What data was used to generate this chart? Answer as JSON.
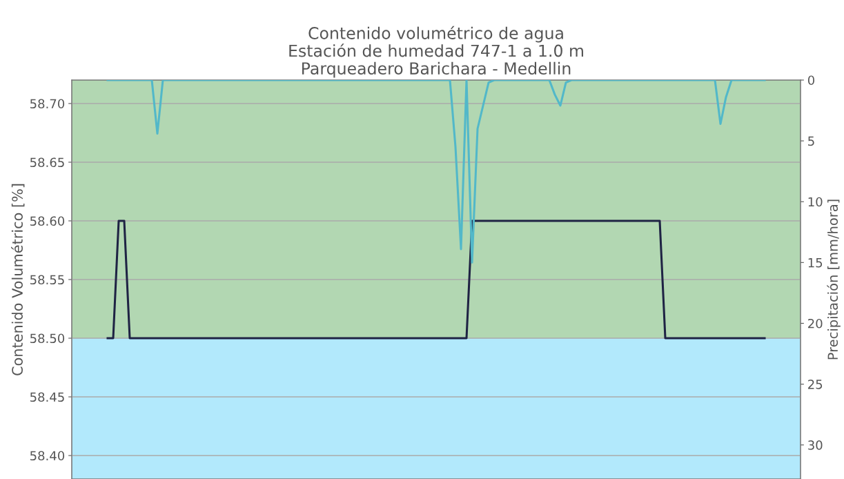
{
  "chart_data": {
    "type": "line",
    "title": "Contenido volumétrico de agua\nEstación de humedad 747-1 a 1.0 m\nParqueadero Barichara - Medellin",
    "ylabel": "Contenido Volumétrico [%]",
    "y2label": "Precipitación [mm/hora]",
    "categories": [
      null,
      null,
      null,
      null,
      null,
      null,
      null,
      null,
      null,
      null,
      null,
      null,
      null,
      null,
      null,
      null,
      null,
      null,
      null,
      null,
      null,
      null,
      null,
      null,
      null,
      null,
      null,
      null,
      null,
      null,
      null,
      null,
      null,
      null,
      null,
      null,
      null,
      null,
      null,
      null,
      null,
      null,
      null,
      null,
      null,
      null,
      null,
      null,
      null,
      null,
      null,
      null,
      null,
      null,
      null,
      null,
      null,
      null,
      null,
      null,
      null,
      null,
      null,
      null,
      null,
      null,
      null,
      null,
      null,
      null,
      null,
      null,
      null,
      null,
      null,
      null,
      null,
      null,
      null,
      null,
      null,
      null,
      null,
      null,
      null,
      null,
      null,
      null,
      null,
      null,
      null,
      null,
      null,
      null,
      null,
      null,
      null,
      null,
      null,
      null,
      null,
      null,
      null,
      null,
      null,
      null,
      null,
      null,
      null,
      null,
      null,
      null,
      null,
      null,
      null,
      null,
      null,
      null,
      null,
      null,
      null,
      null,
      null,
      null,
      null,
      null,
      null,
      null,
      null,
      null,
      null,
      null
    ],
    "ylim": [
      58.38,
      58.72
    ],
    "yticks": [
      {
        "value": 58.4,
        "label": "58.40"
      },
      {
        "value": 58.45,
        "label": "58.45"
      },
      {
        "value": 58.5,
        "label": "58.50"
      },
      {
        "value": 58.55,
        "label": "58.55"
      },
      {
        "value": 58.6,
        "label": "58.60"
      },
      {
        "value": 58.65,
        "label": "58.65"
      },
      {
        "value": 58.7,
        "label": "58.70"
      }
    ],
    "y2lim": [
      32.8,
      0
    ],
    "y2ticks": [
      0,
      5,
      10,
      15,
      20,
      25,
      30
    ],
    "grid": "y",
    "marker": "none",
    "line_style": "solid",
    "bands": [
      {
        "axis": "y",
        "from": 58.5,
        "to": 58.72,
        "color": "#b2d7b2"
      },
      {
        "axis": "y",
        "from": 58.38,
        "to": 58.5,
        "color": "#b2e9fc"
      }
    ],
    "series": [
      {
        "color": "#1f2344",
        "axis": "y",
        "values": [
          null,
          null,
          null,
          null,
          null,
          null,
          58.5,
          58.5,
          58.6,
          58.6,
          58.5,
          58.5,
          58.5,
          58.5,
          58.5,
          58.5,
          58.5,
          58.5,
          58.5,
          58.5,
          58.5,
          58.5,
          58.5,
          58.5,
          58.5,
          58.5,
          58.5,
          58.5,
          58.5,
          58.5,
          58.5,
          58.5,
          58.5,
          58.5,
          58.5,
          58.5,
          58.5,
          58.5,
          58.5,
          58.5,
          58.5,
          58.5,
          58.5,
          58.5,
          58.5,
          58.5,
          58.5,
          58.5,
          58.5,
          58.5,
          58.5,
          58.5,
          58.5,
          58.5,
          58.5,
          58.5,
          58.5,
          58.5,
          58.5,
          58.5,
          58.5,
          58.5,
          58.5,
          58.5,
          58.5,
          58.5,
          58.5,
          58.5,
          58.5,
          58.5,
          58.5,
          58.5,
          58.6,
          58.6,
          58.6,
          58.6,
          58.6,
          58.6,
          58.6,
          58.6,
          58.6,
          58.6,
          58.6,
          58.6,
          58.6,
          58.6,
          58.6,
          58.6,
          58.6,
          58.6,
          58.6,
          58.6,
          58.6,
          58.6,
          58.6,
          58.6,
          58.6,
          58.6,
          58.6,
          58.6,
          58.6,
          58.6,
          58.6,
          58.6,
          58.6,
          58.6,
          58.6,
          58.5,
          58.5,
          58.5,
          58.5,
          58.5,
          58.5,
          58.5,
          58.5,
          58.5,
          58.5,
          58.5,
          58.5,
          58.5,
          58.5,
          58.5,
          58.5,
          58.5,
          58.5,
          58.5,
          null,
          null,
          null,
          null,
          null,
          null
        ]
      },
      {
        "color": "#52b8c9",
        "axis": "y2",
        "values": [
          null,
          null,
          null,
          null,
          null,
          null,
          0,
          0,
          0,
          0,
          0,
          0,
          0,
          0,
          0,
          4.4,
          0,
          0,
          0,
          0,
          0,
          0,
          0,
          0,
          0,
          0,
          0,
          0,
          0,
          0,
          0,
          0,
          0,
          0,
          0,
          0,
          0,
          0,
          0,
          0,
          0,
          0,
          0,
          0,
          0,
          0,
          0,
          0,
          0,
          0,
          0,
          0,
          0,
          0,
          0,
          0,
          0,
          0,
          0,
          0,
          0,
          0,
          0,
          0,
          0,
          0,
          0,
          0,
          0,
          5.5,
          13.9,
          0,
          15.0,
          4.0,
          2.1,
          0.2,
          0,
          0,
          0,
          0,
          0,
          0,
          0,
          0,
          0,
          0,
          0,
          1.2,
          2.1,
          0.2,
          0,
          0,
          0,
          0,
          0,
          0,
          0,
          0,
          0,
          0,
          0,
          0,
          0,
          0,
          0,
          0,
          0,
          0,
          0,
          0,
          0,
          0,
          0,
          0,
          0,
          0,
          0,
          3.6,
          1.4,
          0,
          0,
          0,
          0,
          0,
          0,
          0,
          null,
          null,
          null,
          null,
          null,
          null
        ]
      }
    ]
  }
}
